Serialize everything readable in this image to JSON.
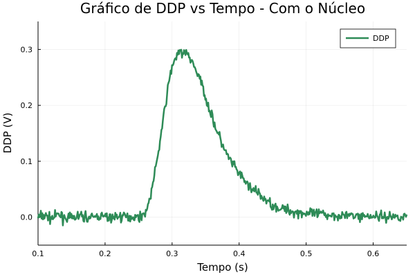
{
  "chart_data": {
    "type": "line",
    "title": "Gráfico de DDP vs Tempo - Com o Núcleo",
    "xlabel": "Tempo (s)",
    "ylabel": "DDP (V)",
    "xlim": [
      0.1,
      0.65
    ],
    "ylim": [
      -0.05,
      0.35
    ],
    "xticks": [
      0.1,
      0.2,
      0.3,
      0.4,
      0.5,
      0.6
    ],
    "xtick_labels": [
      "0.1",
      "0.2",
      "0.3",
      "0.4",
      "0.5",
      "0.6"
    ],
    "yticks": [
      0.0,
      0.1,
      0.2,
      0.3
    ],
    "ytick_labels": [
      "0.0",
      "0.1",
      "0.2",
      "0.3"
    ],
    "grid": true,
    "legend_position": "top-right",
    "series": [
      {
        "name": "DDP",
        "color": "#2e8b57",
        "x": [
          0.1,
          0.11,
          0.12,
          0.13,
          0.14,
          0.15,
          0.16,
          0.17,
          0.18,
          0.19,
          0.2,
          0.21,
          0.22,
          0.23,
          0.24,
          0.25,
          0.255,
          0.26,
          0.265,
          0.27,
          0.275,
          0.28,
          0.285,
          0.29,
          0.295,
          0.3,
          0.305,
          0.31,
          0.315,
          0.32,
          0.325,
          0.33,
          0.335,
          0.34,
          0.345,
          0.35,
          0.355,
          0.36,
          0.365,
          0.37,
          0.375,
          0.38,
          0.39,
          0.4,
          0.41,
          0.42,
          0.43,
          0.44,
          0.45,
          0.46,
          0.48,
          0.5,
          0.52,
          0.54,
          0.56,
          0.58,
          0.6,
          0.62,
          0.64,
          0.65
        ],
        "values": [
          0.0,
          0.003,
          -0.002,
          0.004,
          0.0,
          -0.003,
          0.002,
          0.001,
          -0.002,
          0.003,
          0.0,
          -0.001,
          0.002,
          0.0,
          0.001,
          0.0,
          0.003,
          0.008,
          0.025,
          0.05,
          0.085,
          0.12,
          0.16,
          0.2,
          0.24,
          0.27,
          0.285,
          0.292,
          0.295,
          0.293,
          0.288,
          0.278,
          0.265,
          0.25,
          0.235,
          0.215,
          0.195,
          0.178,
          0.16,
          0.145,
          0.13,
          0.115,
          0.095,
          0.078,
          0.062,
          0.05,
          0.04,
          0.03,
          0.022,
          0.016,
          0.01,
          0.007,
          0.005,
          0.004,
          0.003,
          0.002,
          0.002,
          0.001,
          0.001,
          0.001
        ]
      }
    ]
  }
}
